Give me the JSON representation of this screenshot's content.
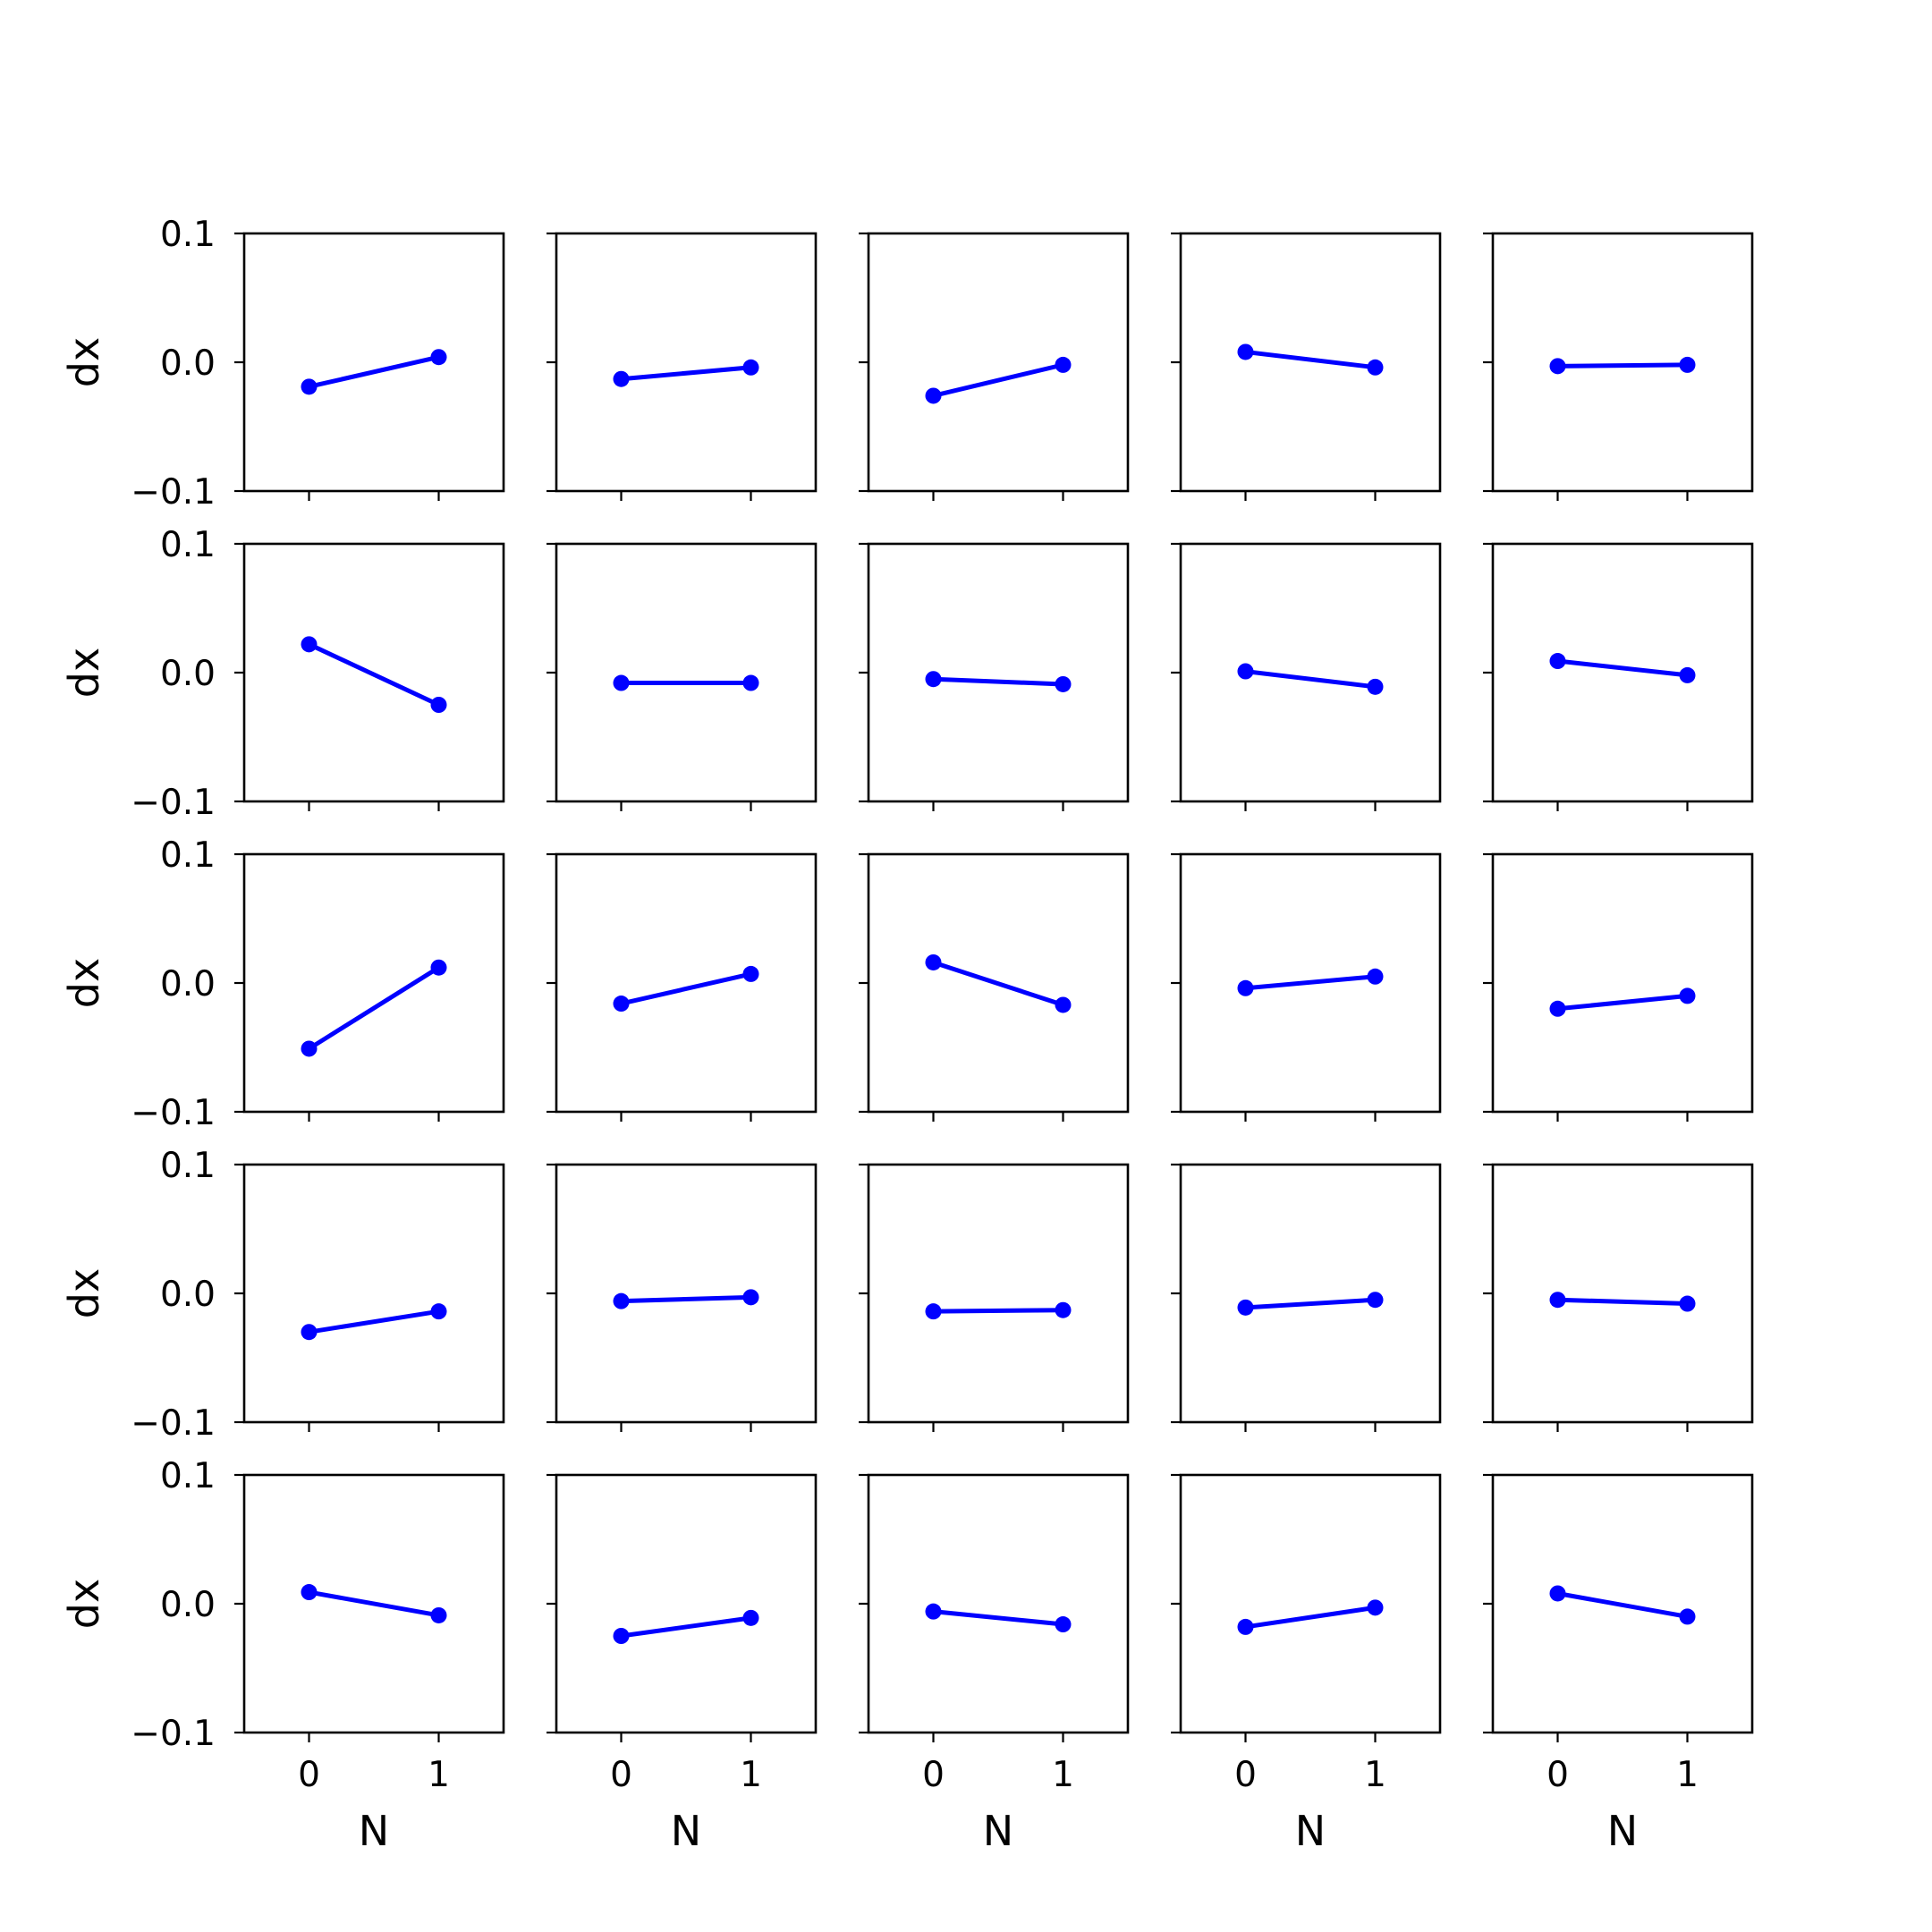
{
  "chart_data": {
    "type": "line",
    "layout": "5x5 small multiples",
    "xlabel": "N",
    "ylabel": "dx",
    "x": [
      0,
      1
    ],
    "xlim": [
      -0.5,
      1.5
    ],
    "ylim": [
      -0.1,
      0.1
    ],
    "xticks": [
      "0",
      "1"
    ],
    "yticks": [
      "0.1",
      "0.0",
      "−0.1"
    ],
    "grid": false,
    "line_color": "#0000ff",
    "marker": "circle",
    "panels": [
      [
        [
          -0.019,
          0.004
        ],
        [
          -0.013,
          -0.004
        ],
        [
          -0.026,
          -0.002
        ],
        [
          0.008,
          -0.004
        ],
        [
          -0.003,
          -0.002
        ]
      ],
      [
        [
          0.022,
          -0.025
        ],
        [
          -0.008,
          -0.008
        ],
        [
          -0.005,
          -0.009
        ],
        [
          0.001,
          -0.011
        ],
        [
          0.009,
          -0.002
        ]
      ],
      [
        [
          -0.051,
          0.012
        ],
        [
          -0.016,
          0.007
        ],
        [
          0.016,
          -0.017
        ],
        [
          -0.004,
          0.005
        ],
        [
          -0.02,
          -0.01
        ]
      ],
      [
        [
          -0.03,
          -0.014
        ],
        [
          -0.006,
          -0.003
        ],
        [
          -0.014,
          -0.013
        ],
        [
          -0.011,
          -0.005
        ],
        [
          -0.005,
          -0.008
        ]
      ],
      [
        [
          0.009,
          -0.009
        ],
        [
          -0.025,
          -0.011
        ],
        [
          -0.006,
          -0.016
        ],
        [
          -0.018,
          -0.003
        ],
        [
          0.008,
          -0.01
        ]
      ]
    ]
  }
}
